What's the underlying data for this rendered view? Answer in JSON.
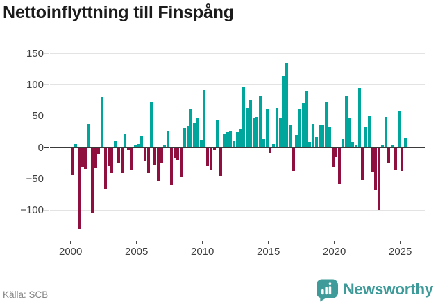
{
  "title": "Nettoinflyttning till Finspång",
  "source": "Källa: SCB",
  "logo": {
    "text": "Newsworthy"
  },
  "colors": {
    "positive": "#00A59B",
    "negative": "#8F0F3F",
    "grid": "#e3e3e3",
    "zero_line": "#3a3a3a",
    "axis_text": "#3f3f3f",
    "title_text": "#1b1b1b",
    "source_text": "#848484",
    "logo_teal": "#3F9B99"
  },
  "chart_data": {
    "type": "bar",
    "title": "Nettoinflyttning till Finspång",
    "xlabel": "",
    "ylabel": "",
    "x_tick_labels": [
      "2000",
      "2005",
      "2010",
      "2015",
      "2020",
      "2025"
    ],
    "x_tick_years": [
      2000,
      2005,
      2010,
      2015,
      2020,
      2025
    ],
    "y_tick_labels": [
      "150",
      "100",
      "50",
      "0",
      "−50",
      "−100"
    ],
    "y_tick_values": [
      150,
      100,
      50,
      0,
      -50,
      -100
    ],
    "ylim": [
      -140,
      160
    ],
    "grid": true,
    "legend": "none",
    "frequency": "quarterly",
    "start_year": 2000,
    "start_quarter": 1,
    "end_year": 2025,
    "end_quarter": 2,
    "values": [
      -43,
      5,
      -129,
      -30,
      -33,
      37,
      -102,
      -32,
      -10,
      81,
      -65,
      -28,
      -39,
      11,
      -23,
      -39,
      21,
      -3,
      -34,
      4,
      5,
      18,
      -21,
      -39,
      73,
      -26,
      -52,
      -23,
      3,
      27,
      -58,
      -15,
      -19,
      -45,
      31,
      34,
      62,
      40,
      48,
      12,
      92,
      -28,
      -34,
      -2,
      43,
      -44,
      22,
      25,
      27,
      11,
      24,
      29,
      96,
      63,
      76,
      48,
      49,
      82,
      13,
      61,
      -8,
      6,
      63,
      48,
      114,
      135,
      35,
      -36,
      20,
      62,
      71,
      89,
      9,
      37,
      17,
      36,
      35,
      72,
      33,
      -30,
      -13,
      -57,
      13,
      83,
      47,
      9,
      3,
      95,
      -50,
      32,
      51,
      -37,
      -66,
      -98,
      4,
      49,
      -24,
      3,
      -34,
      58,
      -36,
      15
    ]
  }
}
